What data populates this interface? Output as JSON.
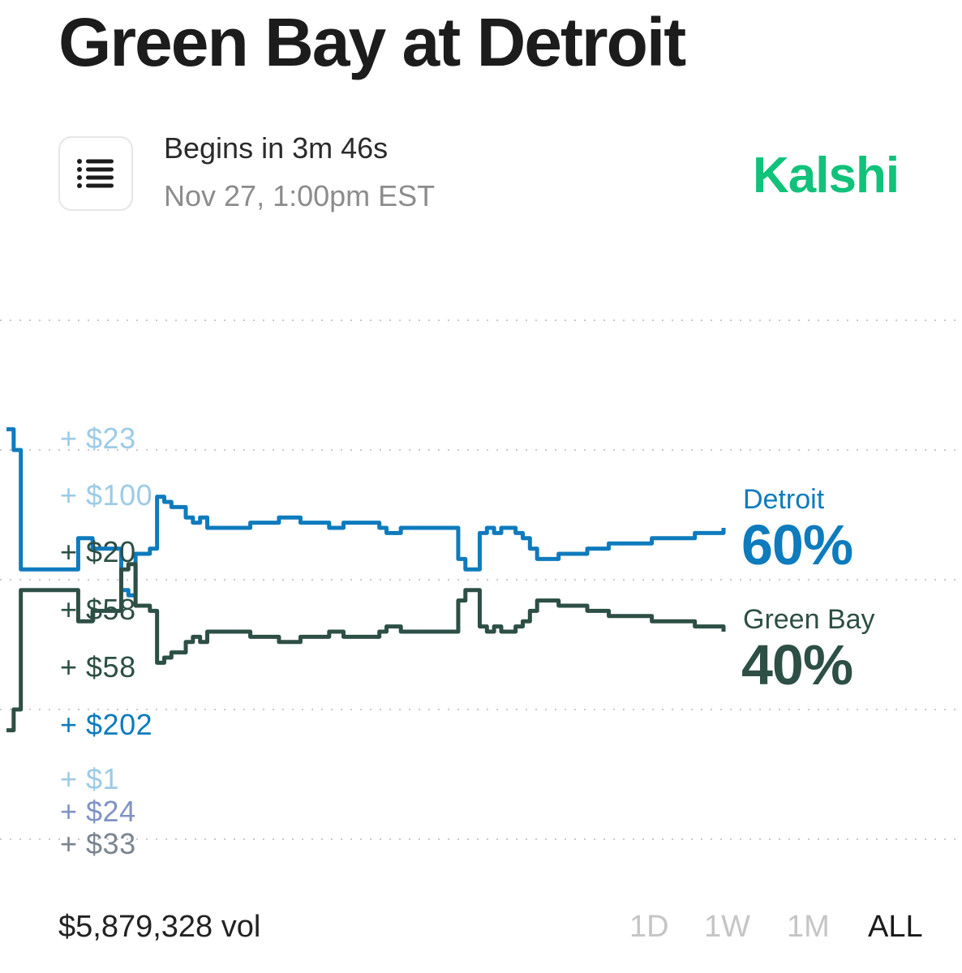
{
  "market": {
    "title": "Green Bay at Detroit",
    "begins": "Begins in 3m 46s",
    "date": "Nov 27, 1:00pm EST",
    "brand": "Kalshi"
  },
  "icons": {
    "menu": "list-icon"
  },
  "outcomes": [
    {
      "team": "Detroit",
      "percent": "60%",
      "color": "#0e7bbd"
    },
    {
      "team": "Green Bay",
      "percent": "40%",
      "color": "#2d4f45"
    }
  ],
  "trades": [
    {
      "text": "+ $23",
      "color": "#9ccbe6"
    },
    {
      "text": "+ $100",
      "color": "#9ccbe6"
    },
    {
      "text": "+ $20",
      "color": "#2d4f45"
    },
    {
      "text": "+ $58",
      "color": "#2d4f45"
    },
    {
      "text": "+ $58",
      "color": "#2d4f45"
    },
    {
      "text": "+ $202",
      "color": "#0e7bbd"
    },
    {
      "text": "+ $1",
      "color": "#9ccbe6"
    },
    {
      "text": "+ $24",
      "color": "#7f93c4"
    },
    {
      "text": "+ $33",
      "color": "#7a8591"
    }
  ],
  "footer": {
    "volume": "$5,879,328 vol",
    "ranges": [
      "1D",
      "1W",
      "1M",
      "ALL"
    ],
    "active_range": "ALL"
  },
  "chart_data": {
    "type": "line",
    "series": [
      {
        "name": "Detroit",
        "x": [
          0,
          1,
          2,
          3,
          4,
          5,
          6,
          7,
          8,
          9,
          10,
          11,
          12,
          13,
          14,
          15,
          16,
          17,
          18,
          19,
          20,
          21,
          22,
          23,
          24,
          25,
          26,
          27,
          28,
          29,
          30,
          31,
          32,
          33,
          34,
          35,
          36,
          37,
          38,
          39,
          40,
          41,
          42,
          43,
          44,
          45,
          46,
          47,
          48,
          49,
          50,
          51,
          52,
          53,
          54,
          55,
          56,
          57,
          58,
          59,
          60,
          61,
          62,
          63,
          64,
          65,
          66,
          67,
          68,
          69,
          70,
          71,
          72,
          73,
          74,
          75,
          76,
          77,
          78,
          79,
          80,
          81,
          82,
          83,
          84,
          85,
          86,
          87,
          88,
          89,
          90,
          91,
          92,
          93,
          94,
          95,
          96,
          97,
          98,
          99,
          100
        ],
        "values": [
          79,
          75,
          52,
          52,
          52,
          52,
          52,
          52,
          52,
          52,
          58,
          58,
          56,
          56,
          56,
          56,
          48,
          47,
          55,
          55,
          56,
          66,
          65,
          64,
          64,
          62,
          61,
          62,
          60,
          60,
          60,
          60,
          60,
          60,
          61,
          61,
          61,
          61,
          62,
          62,
          62,
          61,
          61,
          61,
          61,
          60,
          60,
          61,
          61,
          61,
          61,
          61,
          60,
          59,
          59,
          60,
          60,
          60,
          60,
          60,
          60,
          60,
          60,
          54,
          52,
          52,
          59,
          60,
          59,
          60,
          60,
          59,
          58,
          56,
          54,
          54,
          54,
          55,
          55,
          55,
          55,
          56,
          56,
          56,
          57,
          57,
          57,
          57,
          57,
          57,
          58,
          58,
          58,
          58,
          58,
          58,
          59,
          59,
          59,
          59,
          60
        ]
      },
      {
        "name": "Green Bay",
        "x": [
          0,
          1,
          2,
          3,
          4,
          5,
          6,
          7,
          8,
          9,
          10,
          11,
          12,
          13,
          14,
          15,
          16,
          17,
          18,
          19,
          20,
          21,
          22,
          23,
          24,
          25,
          26,
          27,
          28,
          29,
          30,
          31,
          32,
          33,
          34,
          35,
          36,
          37,
          38,
          39,
          40,
          41,
          42,
          43,
          44,
          45,
          46,
          47,
          48,
          49,
          50,
          51,
          52,
          53,
          54,
          55,
          56,
          57,
          58,
          59,
          60,
          61,
          62,
          63,
          64,
          65,
          66,
          67,
          68,
          69,
          70,
          71,
          72,
          73,
          74,
          75,
          76,
          77,
          78,
          79,
          80,
          81,
          82,
          83,
          84,
          85,
          86,
          87,
          88,
          89,
          90,
          91,
          92,
          93,
          94,
          95,
          96,
          97,
          98,
          99,
          100
        ],
        "values": [
          21,
          25,
          48,
          48,
          48,
          48,
          48,
          48,
          48,
          48,
          42,
          42,
          44,
          44,
          44,
          44,
          52,
          53,
          45,
          45,
          44,
          34,
          35,
          36,
          36,
          38,
          39,
          38,
          40,
          40,
          40,
          40,
          40,
          40,
          39,
          39,
          39,
          39,
          38,
          38,
          38,
          39,
          39,
          39,
          39,
          40,
          40,
          39,
          39,
          39,
          39,
          39,
          40,
          41,
          41,
          40,
          40,
          40,
          40,
          40,
          40,
          40,
          40,
          46,
          48,
          48,
          41,
          40,
          41,
          40,
          40,
          41,
          42,
          44,
          46,
          46,
          46,
          45,
          45,
          45,
          45,
          44,
          44,
          44,
          43,
          43,
          43,
          43,
          43,
          43,
          42,
          42,
          42,
          42,
          42,
          42,
          41,
          41,
          41,
          41,
          40
        ]
      }
    ],
    "ylim": [
      0,
      100
    ],
    "grid": true,
    "legend": "right"
  }
}
